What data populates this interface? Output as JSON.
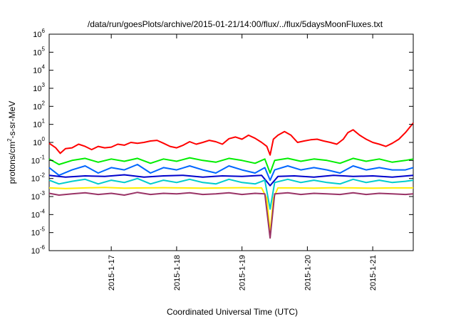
{
  "chart_data": {
    "type": "line",
    "title": "/data/run/goesPlots/archive/2015-01-21/14:00/flux/../flux/5daysMoonFluxes.txt",
    "xlabel": "Coordinated Universal Time (UTC)",
    "ylabel_parts": [
      "protons/cm",
      "2",
      "-s-sr-MeV"
    ],
    "yscale": "log",
    "ylim": [
      1e-06,
      1000000.0
    ],
    "xlim": [
      16.05,
      21.62
    ],
    "y_ticks": [
      {
        "base": "10",
        "exp": "-6",
        "value": 1e-06
      },
      {
        "base": "10",
        "exp": "-5",
        "value": 1e-05
      },
      {
        "base": "10",
        "exp": "-4",
        "value": 0.0001
      },
      {
        "base": "10",
        "exp": "-3",
        "value": 0.001
      },
      {
        "base": "10",
        "exp": "-2",
        "value": 0.01
      },
      {
        "base": "10",
        "exp": "-1",
        "value": 0.1
      },
      {
        "base": "10",
        "exp": "0",
        "value": 1
      },
      {
        "base": "10",
        "exp": "1",
        "value": 10
      },
      {
        "base": "10",
        "exp": "2",
        "value": 100
      },
      {
        "base": "10",
        "exp": "3",
        "value": 1000
      },
      {
        "base": "10",
        "exp": "4",
        "value": 10000
      },
      {
        "base": "10",
        "exp": "5",
        "value": 100000
      },
      {
        "base": "10",
        "exp": "6",
        "value": 1000000
      }
    ],
    "x_ticks": [
      {
        "label": "2015-1-17",
        "value": 17
      },
      {
        "label": "2015-1-18",
        "value": 18
      },
      {
        "label": "2015-1-19",
        "value": 19
      },
      {
        "label": "2015-1-20",
        "value": 20
      },
      {
        "label": "2015-1-21",
        "value": 21
      }
    ],
    "grid": false,
    "legend": "none",
    "series": [
      {
        "color": "#ff0000",
        "x": [
          16.05,
          16.15,
          16.22,
          16.3,
          16.4,
          16.5,
          16.6,
          16.7,
          16.8,
          16.9,
          17.0,
          17.1,
          17.2,
          17.3,
          17.4,
          17.5,
          17.6,
          17.7,
          17.8,
          17.9,
          18.0,
          18.1,
          18.2,
          18.3,
          18.4,
          18.5,
          18.6,
          18.7,
          18.8,
          18.9,
          19.0,
          19.1,
          19.2,
          19.3,
          19.38,
          19.43,
          19.48,
          19.55,
          19.65,
          19.75,
          19.85,
          19.95,
          20.05,
          20.15,
          20.25,
          20.35,
          20.45,
          20.55,
          20.62,
          20.7,
          20.8,
          20.9,
          21.0,
          21.1,
          21.2,
          21.3,
          21.4,
          21.5,
          21.62
        ],
        "y": [
          0.9,
          0.5,
          0.25,
          0.45,
          0.5,
          0.8,
          0.6,
          0.4,
          0.6,
          0.5,
          0.55,
          0.8,
          0.7,
          1.0,
          0.9,
          1.0,
          1.2,
          1.3,
          0.9,
          0.6,
          0.5,
          0.7,
          1.1,
          0.8,
          1.0,
          1.3,
          1.1,
          0.8,
          1.6,
          2.0,
          1.5,
          2.5,
          1.7,
          1.0,
          0.6,
          0.2,
          1.5,
          2.5,
          4.0,
          2.5,
          1.0,
          1.2,
          1.4,
          1.5,
          1.2,
          1.0,
          0.8,
          1.5,
          3.5,
          5.0,
          2.5,
          1.5,
          1.0,
          0.8,
          0.6,
          0.9,
          1.5,
          3.5,
          12.0
        ]
      },
      {
        "color": "#00ee00",
        "x": [
          16.05,
          16.2,
          16.4,
          16.6,
          16.8,
          17.0,
          17.2,
          17.4,
          17.6,
          17.8,
          18.0,
          18.2,
          18.4,
          18.6,
          18.8,
          19.0,
          19.2,
          19.35,
          19.43,
          19.5,
          19.7,
          19.9,
          20.1,
          20.3,
          20.5,
          20.7,
          20.9,
          21.1,
          21.3,
          21.5,
          21.62
        ],
        "y": [
          0.12,
          0.06,
          0.1,
          0.13,
          0.08,
          0.12,
          0.09,
          0.13,
          0.07,
          0.12,
          0.09,
          0.14,
          0.1,
          0.08,
          0.13,
          0.1,
          0.07,
          0.12,
          0.02,
          0.1,
          0.13,
          0.09,
          0.12,
          0.1,
          0.07,
          0.13,
          0.09,
          0.12,
          0.08,
          0.1,
          0.12
        ]
      },
      {
        "color": "#0066ff",
        "x": [
          16.05,
          16.2,
          16.4,
          16.6,
          16.8,
          17.0,
          17.2,
          17.4,
          17.6,
          17.8,
          18.0,
          18.2,
          18.4,
          18.6,
          18.8,
          19.0,
          19.2,
          19.35,
          19.43,
          19.5,
          19.7,
          19.9,
          20.1,
          20.3,
          20.5,
          20.7,
          20.9,
          21.1,
          21.3,
          21.5,
          21.62
        ],
        "y": [
          0.04,
          0.015,
          0.03,
          0.05,
          0.02,
          0.04,
          0.03,
          0.06,
          0.02,
          0.04,
          0.03,
          0.05,
          0.03,
          0.02,
          0.05,
          0.03,
          0.02,
          0.04,
          0.008,
          0.03,
          0.05,
          0.03,
          0.04,
          0.03,
          0.02,
          0.05,
          0.03,
          0.04,
          0.03,
          0.03,
          0.04
        ]
      },
      {
        "color": "#0000cc",
        "x": [
          16.05,
          16.3,
          16.6,
          16.9,
          17.2,
          17.5,
          17.8,
          18.1,
          18.4,
          18.7,
          19.0,
          19.3,
          19.43,
          19.55,
          19.8,
          20.1,
          20.4,
          20.7,
          21.0,
          21.3,
          21.62
        ],
        "y": [
          0.015,
          0.012,
          0.014,
          0.013,
          0.016,
          0.012,
          0.014,
          0.015,
          0.012,
          0.014,
          0.013,
          0.015,
          0.004,
          0.013,
          0.014,
          0.012,
          0.015,
          0.013,
          0.014,
          0.012,
          0.015
        ]
      },
      {
        "color": "#00cccc",
        "x": [
          16.05,
          16.2,
          16.4,
          16.6,
          16.8,
          17.0,
          17.2,
          17.4,
          17.6,
          17.8,
          18.0,
          18.2,
          18.4,
          18.6,
          18.8,
          19.0,
          19.2,
          19.35,
          19.43,
          19.5,
          19.7,
          19.9,
          20.1,
          20.3,
          20.5,
          20.7,
          20.9,
          21.1,
          21.3,
          21.5,
          21.62
        ],
        "y": [
          0.008,
          0.005,
          0.007,
          0.009,
          0.005,
          0.008,
          0.006,
          0.01,
          0.005,
          0.008,
          0.006,
          0.009,
          0.006,
          0.005,
          0.009,
          0.006,
          0.005,
          0.008,
          0.0002,
          0.006,
          0.009,
          0.006,
          0.008,
          0.006,
          0.005,
          0.009,
          0.006,
          0.008,
          0.006,
          0.007,
          0.008
        ]
      },
      {
        "color": "#ffee00",
        "x": [
          16.05,
          16.3,
          16.6,
          16.9,
          17.2,
          17.5,
          17.8,
          18.1,
          18.4,
          18.7,
          19.0,
          19.3,
          19.38,
          19.43,
          19.48,
          19.55,
          19.8,
          20.1,
          20.4,
          20.7,
          21.0,
          21.3,
          21.62
        ],
        "y": [
          0.003,
          0.0028,
          0.003,
          0.0032,
          0.0029,
          0.003,
          0.0031,
          0.003,
          0.0029,
          0.003,
          0.0031,
          0.003,
          0.0008,
          1e-05,
          0.0008,
          0.003,
          0.003,
          0.0029,
          0.0031,
          0.003,
          0.0029,
          0.003,
          0.003
        ]
      },
      {
        "color": "#993366",
        "x": [
          16.05,
          16.2,
          16.4,
          16.6,
          16.8,
          17.0,
          17.2,
          17.4,
          17.6,
          17.8,
          18.0,
          18.2,
          18.4,
          18.6,
          18.8,
          19.0,
          19.2,
          19.35,
          19.43,
          19.5,
          19.7,
          19.9,
          20.1,
          20.3,
          20.5,
          20.7,
          20.9,
          21.1,
          21.3,
          21.5,
          21.62
        ],
        "y": [
          0.0015,
          0.0012,
          0.0014,
          0.0016,
          0.0013,
          0.0015,
          0.0012,
          0.0017,
          0.0013,
          0.0015,
          0.0014,
          0.0016,
          0.0013,
          0.0014,
          0.0016,
          0.0013,
          0.0015,
          0.0014,
          5e-06,
          0.0014,
          0.0016,
          0.0013,
          0.0015,
          0.0014,
          0.0013,
          0.0016,
          0.0013,
          0.0015,
          0.0014,
          0.0013,
          0.0014
        ]
      }
    ]
  }
}
